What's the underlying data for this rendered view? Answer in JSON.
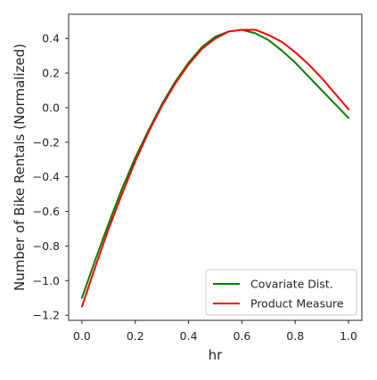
{
  "chart_data": {
    "type": "line",
    "title": "",
    "xlabel": "hr",
    "ylabel": "Number of Bike Rentals (Normalized)",
    "xlim": [
      -0.05,
      1.05
    ],
    "ylim": [
      -1.23,
      0.54
    ],
    "xticks": [
      0.0,
      0.2,
      0.4,
      0.6,
      0.8,
      1.0
    ],
    "xtick_labels": [
      "0.0",
      "0.2",
      "0.4",
      "0.6",
      "0.8",
      "1.0"
    ],
    "yticks": [
      -1.2,
      -1.0,
      -0.8,
      -0.6,
      -0.4,
      -0.2,
      0.0,
      0.2,
      0.4
    ],
    "ytick_labels": [
      "−1.2",
      "−1.0",
      "−0.8",
      "−0.6",
      "−0.4",
      "−0.2",
      "0.0",
      "0.2",
      "0.4"
    ],
    "grid": false,
    "legend_position": "lower-right",
    "x": [
      0.0,
      0.05,
      0.1,
      0.15,
      0.2,
      0.25,
      0.3,
      0.35,
      0.4,
      0.45,
      0.5,
      0.55,
      0.6,
      0.65,
      0.7,
      0.75,
      0.8,
      0.85,
      0.9,
      0.95,
      1.0
    ],
    "series": [
      {
        "name": "Covariate Dist.",
        "color": "#008000",
        "values": [
          -1.1,
          -0.88,
          -0.67,
          -0.47,
          -0.29,
          -0.13,
          0.02,
          0.15,
          0.26,
          0.35,
          0.41,
          0.44,
          0.45,
          0.43,
          0.39,
          0.33,
          0.26,
          0.18,
          0.1,
          0.02,
          -0.06
        ]
      },
      {
        "name": "Product Measure",
        "color": "#ff0000",
        "values": [
          -1.15,
          -0.92,
          -0.7,
          -0.5,
          -0.31,
          -0.14,
          0.01,
          0.14,
          0.25,
          0.34,
          0.4,
          0.44,
          0.45,
          0.45,
          0.42,
          0.38,
          0.32,
          0.25,
          0.17,
          0.08,
          -0.01
        ]
      }
    ]
  }
}
